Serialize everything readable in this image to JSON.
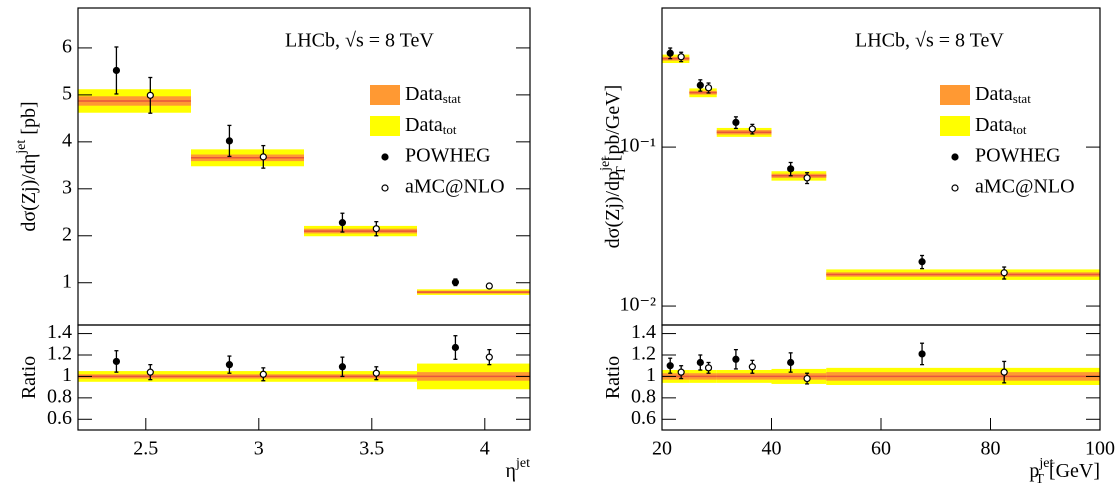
{
  "chart_data": [
    {
      "type": "errorbar",
      "annotation": "LHCb, √s = 8 TeV",
      "ylabel": "dσ(Zj)/dη",
      "ylabel_sup": "jet",
      "ylabel_unit": "[pb]",
      "bins": [
        2.2,
        2.7,
        3.2,
        3.7,
        4.2
      ],
      "data": {
        "values": [
          4.87,
          3.66,
          2.1,
          0.8
        ],
        "bands": [
          {
            "name": "Data",
            "name_sub": "stat",
            "color": "#ff9933",
            "errors": [
              0.1,
              0.07,
              0.05,
              0.03
            ]
          },
          {
            "name": "Data",
            "name_sub": "tot",
            "color": "#ffff00",
            "errors": [
              0.25,
              0.18,
              0.11,
              0.06
            ]
          }
        ]
      },
      "series": [
        {
          "name": "POWHEG",
          "marker": "filled",
          "color": "#000000",
          "x": [
            2.37,
            2.87,
            3.37,
            3.87
          ],
          "values": [
            5.52,
            4.02,
            2.28,
            1.01
          ],
          "errors": [
            0.5,
            0.33,
            0.2,
            0.07
          ]
        },
        {
          "name": "aMC@NLO",
          "marker": "open",
          "color": "#000000",
          "x": [
            2.52,
            3.02,
            3.52,
            4.02
          ],
          "values": [
            4.99,
            3.68,
            2.15,
            0.93
          ],
          "errors": [
            0.38,
            0.24,
            0.15,
            0.04
          ]
        }
      ],
      "xlim": [
        2.2,
        4.2
      ],
      "ylim": [
        0.1,
        6.85
      ],
      "yticks": [
        1,
        2,
        3,
        4,
        5,
        6
      ],
      "legend": "upper right"
    },
    {
      "type": "errorbar",
      "ylabel": "Ratio",
      "xlabel": "η",
      "xlabel_sup": "jet",
      "bins": [
        2.2,
        2.7,
        3.2,
        3.7,
        4.2
      ],
      "data": {
        "values": [
          1,
          1,
          1,
          1
        ],
        "bands": [
          {
            "name": "Data",
            "name_sub": "stat",
            "color": "#ff9933",
            "errors": [
              0.02,
              0.02,
              0.02,
              0.04
            ]
          },
          {
            "name": "Data",
            "name_sub": "tot",
            "color": "#ffff00",
            "errors": [
              0.05,
              0.05,
              0.05,
              0.12
            ]
          }
        ]
      },
      "series": [
        {
          "name": "POWHEG",
          "marker": "filled",
          "color": "#000000",
          "x": [
            2.37,
            2.87,
            3.37,
            3.87
          ],
          "values": [
            1.14,
            1.11,
            1.09,
            1.27
          ],
          "errors": [
            0.1,
            0.08,
            0.09,
            0.11
          ]
        },
        {
          "name": "aMC@NLO",
          "marker": "open",
          "color": "#000000",
          "x": [
            2.52,
            3.02,
            3.52,
            4.02
          ],
          "values": [
            1.04,
            1.02,
            1.03,
            1.18
          ],
          "errors": [
            0.07,
            0.06,
            0.06,
            0.07
          ]
        }
      ],
      "xlim": [
        2.2,
        4.2
      ],
      "xticks": [
        2.5,
        3,
        3.5,
        4
      ],
      "ylim": [
        0.5,
        1.48
      ],
      "yticks": [
        0.6,
        0.8,
        1,
        1.2,
        1.4
      ]
    },
    {
      "type": "errorbar",
      "annotation": "LHCb, √s = 8 TeV",
      "ylabel": "dσ(Zj)/dp",
      "ylabel_sup": "jet",
      "ylabel_sub": "T",
      "ylabel_unit": "[pb/GeV]",
      "bins": [
        20,
        25,
        30,
        40,
        50,
        100
      ],
      "data": {
        "values": [
          0.36,
          0.22,
          0.124,
          0.066,
          0.0158
        ],
        "bands": [
          {
            "name": "Data",
            "name_sub": "stat",
            "color": "#ff9933",
            "errors": [
              0.01,
              0.006,
              0.004,
              0.002,
              0.0005
            ]
          },
          {
            "name": "Data",
            "name_sub": "tot",
            "color": "#ffff00",
            "errors": [
              0.022,
              0.014,
              0.008,
              0.0045,
              0.0012
            ]
          }
        ]
      },
      "series": [
        {
          "name": "POWHEG",
          "marker": "filled",
          "color": "#000000",
          "x": [
            21.5,
            27,
            33.5,
            43.5,
            67.5
          ],
          "values": [
            0.39,
            0.245,
            0.143,
            0.073,
            0.019
          ],
          "errors": [
            0.03,
            0.02,
            0.012,
            0.007,
            0.0018
          ]
        },
        {
          "name": "aMC@NLO",
          "marker": "open",
          "color": "#000000",
          "x": [
            23.5,
            28.5,
            36.5,
            46.5,
            82.5
          ],
          "values": [
            0.37,
            0.236,
            0.13,
            0.064,
            0.0162
          ],
          "errors": [
            0.025,
            0.017,
            0.009,
            0.005,
            0.0014
          ]
        }
      ],
      "xlim": [
        20,
        100
      ],
      "ylim": [
        0.0076,
        0.75
      ],
      "log_y": true,
      "yticks": [
        {
          "value": 0.01,
          "label": "10⁻²"
        },
        {
          "value": 0.1,
          "label": "10⁻¹"
        }
      ],
      "legend": "upper right"
    },
    {
      "type": "errorbar",
      "ylabel": "Ratio",
      "xlabel": "p",
      "xlabel_sup": "jet",
      "xlabel_sub": "T",
      "xlabel_unit": "[GeV]",
      "bins": [
        20,
        25,
        30,
        40,
        50,
        100
      ],
      "data": {
        "values": [
          1,
          1,
          1,
          1,
          1
        ],
        "bands": [
          {
            "name": "Data",
            "name_sub": "stat",
            "color": "#ff9933",
            "errors": [
              0.03,
              0.03,
              0.03,
              0.03,
              0.04
            ]
          },
          {
            "name": "Data",
            "name_sub": "tot",
            "color": "#ffff00",
            "errors": [
              0.06,
              0.06,
              0.06,
              0.07,
              0.08
            ]
          }
        ]
      },
      "series": [
        {
          "name": "POWHEG",
          "marker": "filled",
          "color": "#000000",
          "x": [
            21.5,
            27,
            33.5,
            43.5,
            67.5
          ],
          "values": [
            1.1,
            1.13,
            1.16,
            1.13,
            1.21
          ],
          "errors": [
            0.07,
            0.07,
            0.09,
            0.09,
            0.1
          ]
        },
        {
          "name": "aMC@NLO",
          "marker": "open",
          "color": "#000000",
          "x": [
            23.5,
            28.5,
            36.5,
            46.5,
            82.5
          ],
          "values": [
            1.04,
            1.08,
            1.09,
            0.98,
            1.04
          ],
          "errors": [
            0.06,
            0.05,
            0.06,
            0.05,
            0.1
          ]
        }
      ],
      "xlim": [
        20,
        100
      ],
      "xticks": [
        20,
        40,
        60,
        80,
        100
      ],
      "ylim": [
        0.5,
        1.48
      ],
      "yticks": [
        0.6,
        0.8,
        1,
        1.2,
        1.4
      ]
    }
  ]
}
